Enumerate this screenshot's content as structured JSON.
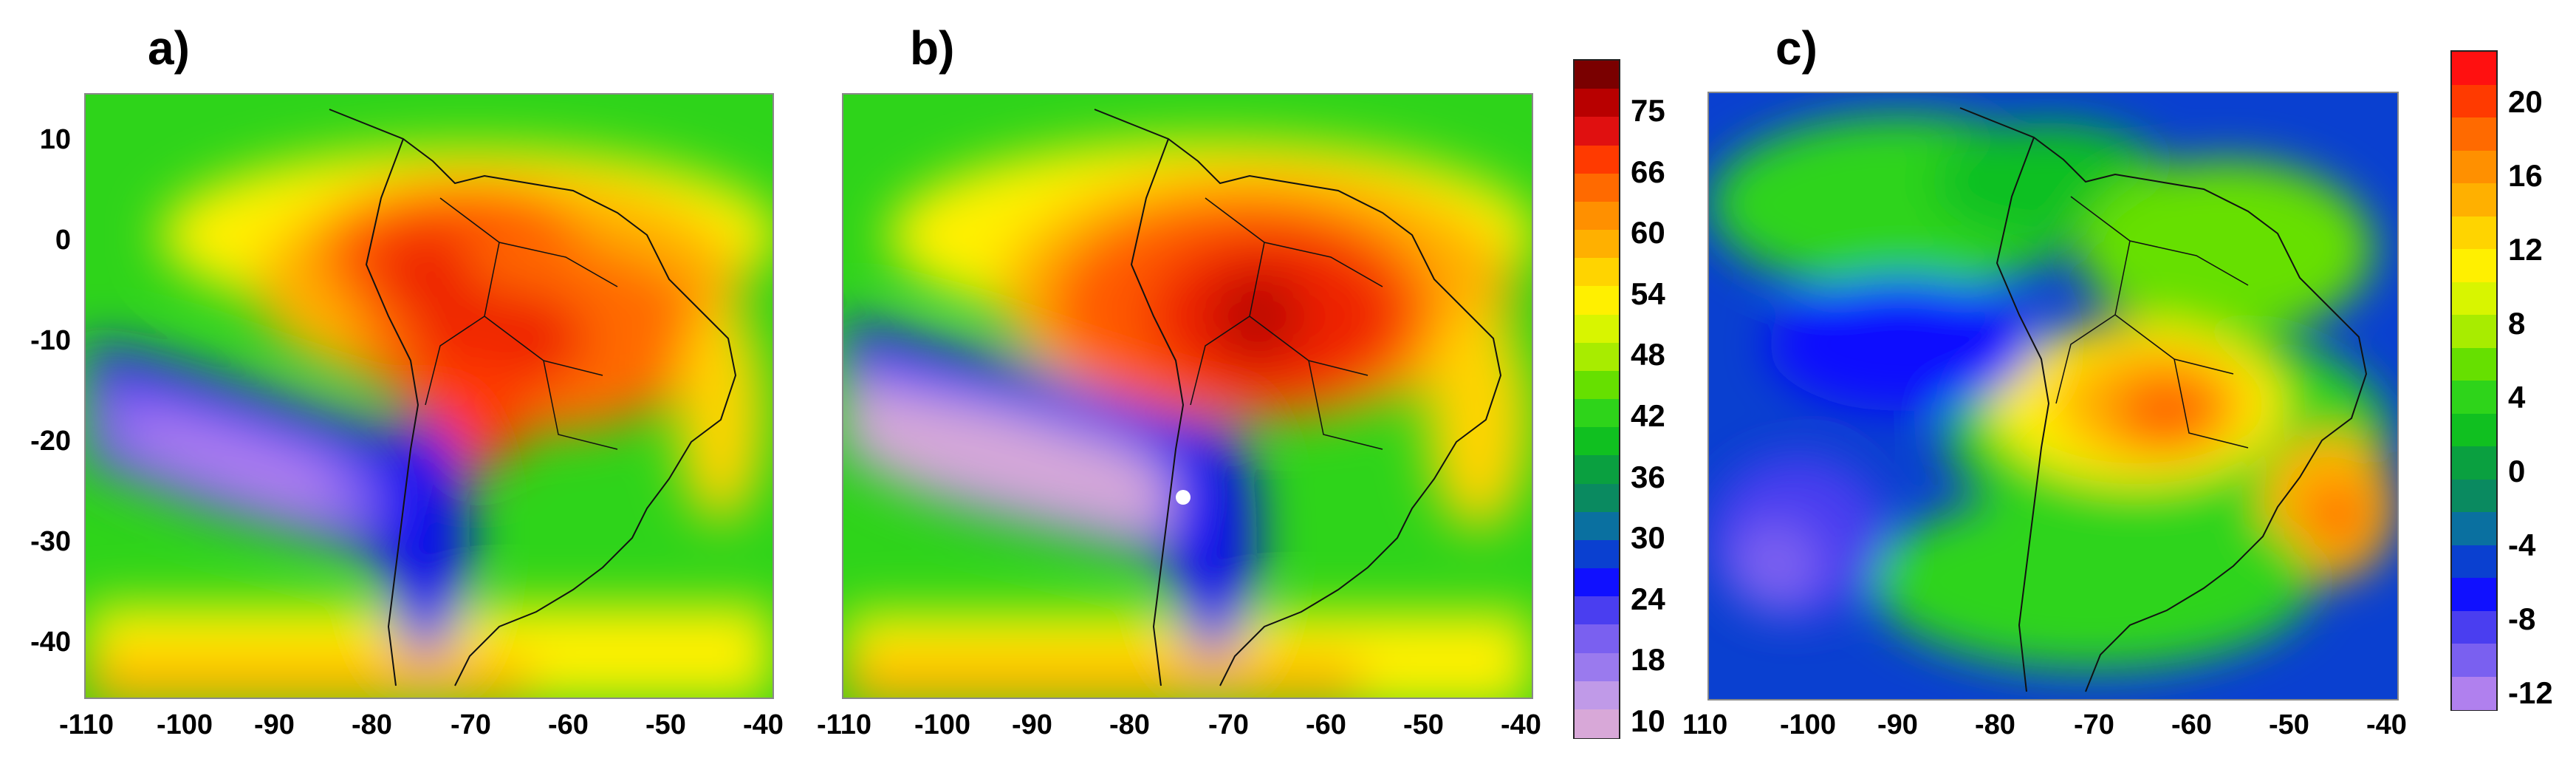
{
  "panels": [
    {
      "label": "a)",
      "x_ticks": [
        "-110",
        "-100",
        "-90",
        "-80",
        "-70",
        "-60",
        "-50",
        "-40"
      ],
      "y_ticks": [
        "10",
        "0",
        "-10",
        "-20",
        "-30",
        "-40"
      ]
    },
    {
      "label": "b)",
      "x_ticks": [
        "-110",
        "-100",
        "-90",
        "-80",
        "-70",
        "-60",
        "-50",
        "-40"
      ],
      "y_ticks": []
    },
    {
      "label": "c)",
      "x_ticks": [
        "110",
        "-100",
        "-90",
        "-80",
        "-70",
        "-60",
        "-50",
        "-40"
      ],
      "y_ticks": []
    }
  ],
  "colorbar_ab": {
    "labels": [
      "75",
      "66",
      "60",
      "54",
      "48",
      "42",
      "36",
      "30",
      "24",
      "18",
      "10"
    ],
    "colors": [
      "#7a0000",
      "#b80000",
      "#e01010",
      "#ff3a00",
      "#ff6a00",
      "#ff9000",
      "#ffb000",
      "#ffd400",
      "#fff000",
      "#d8f500",
      "#a8ec00",
      "#66e000",
      "#2ed41a",
      "#10c020",
      "#0aa040",
      "#0a8a60",
      "#0a70a0",
      "#0a40d0",
      "#1010ff",
      "#4a3ef0",
      "#7a60f0",
      "#9a7aee",
      "#c09ae8",
      "#d8a8d8"
    ]
  },
  "colorbar_c": {
    "labels": [
      "20",
      "16",
      "12",
      "8",
      "4",
      "0",
      "-4",
      "-8",
      "-12"
    ],
    "colors": [
      "#ff1010",
      "#ff3a00",
      "#ff6a00",
      "#ff9000",
      "#ffb000",
      "#ffd400",
      "#fff000",
      "#d8f500",
      "#a8ec00",
      "#66e000",
      "#2ed41a",
      "#10c020",
      "#0aa040",
      "#0a8a60",
      "#0a70a0",
      "#0a40d0",
      "#1010ff",
      "#4a3ef0",
      "#7a60f0",
      "#b080ee"
    ]
  },
  "colors": {
    "background": "#ffffff",
    "green": "#22cc22",
    "blue": "#1010ee",
    "red": "#ee2200",
    "yellow": "#f0f000",
    "purple": "#9a7aee",
    "lilac": "#d6a8d8"
  }
}
